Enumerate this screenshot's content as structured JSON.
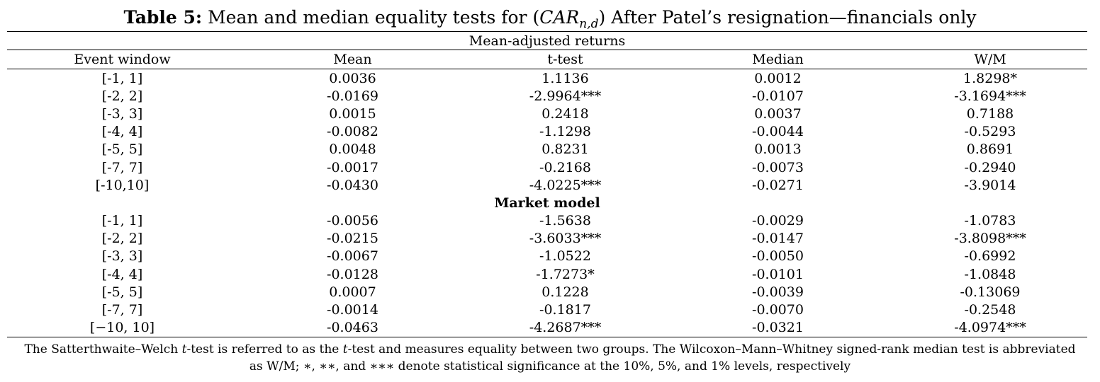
{
  "title": {
    "label": "Table 5:",
    "text_before": "Mean and median equality tests for",
    "math_open": "(",
    "math_var": "CAR",
    "math_sub": "n,d",
    "math_close": ")",
    "text_after": "After Patel’s resignation—financials only"
  },
  "table": {
    "panel_heading": "Mean-adjusted returns",
    "columns": [
      "Event window",
      "Mean",
      "t-test",
      "Median",
      "W/M"
    ],
    "section_heading": "Market model",
    "mean_adjusted_rows": [
      [
        "[-1, 1]",
        "0.0036",
        "1.1136",
        "0.0012",
        "1.8298*"
      ],
      [
        "[-2, 2]",
        "-0.0169",
        "-2.9964***",
        "-0.0107",
        "-3.1694***"
      ],
      [
        "[-3, 3]",
        "0.0015",
        "0.2418",
        "0.0037",
        "0.7188"
      ],
      [
        "[-4, 4]",
        "-0.0082",
        "-1.1298",
        "-0.0044",
        "-0.5293"
      ],
      [
        "[-5, 5]",
        "0.0048",
        "0.8231",
        "0.0013",
        "0.8691"
      ],
      [
        "[-7, 7]",
        "-0.0017",
        "-0.2168",
        "-0.0073",
        "-0.2940"
      ],
      [
        "[-10,10]",
        "-0.0430",
        "-4.0225***",
        "-0.0271",
        "-3.9014"
      ]
    ],
    "market_model_rows": [
      [
        "[-1, 1]",
        "-0.0056",
        "-1.5638",
        "-0.0029",
        "-1.0783"
      ],
      [
        "[-2, 2]",
        "-0.0215",
        "-3.6033***",
        "-0.0147",
        "-3.8098***"
      ],
      [
        "[-3, 3]",
        "-0.0067",
        "-1.0522",
        "-0.0050",
        "-0.6992"
      ],
      [
        "[-4, 4]",
        "-0.0128",
        "-1.7273*",
        "-0.0101",
        "-1.0848"
      ],
      [
        "[-5, 5]",
        "0.0007",
        "0.1228",
        "-0.0039",
        "-0.13069"
      ],
      [
        "[-7, 7]",
        "-0.0014",
        "-0.1817",
        "-0.0070",
        "-0.2548"
      ],
      [
        "[−10, 10]",
        "-0.0463",
        "-4.2687***",
        "-0.0321",
        "-4.0974***"
      ]
    ]
  },
  "note": {
    "part1": "The Satterthwaite–Welch ",
    "t1": "t",
    "part2": "-test is referred to as the ",
    "t2": "t",
    "part3": "-test and measures equality between two groups. The Wilcoxon–Mann–Whitney signed-rank median test is abbreviated as W/M; ",
    "sig": "∗, ∗∗, and ∗∗∗",
    "part4": " denote statistical significance at the 10%, 5%, and 1% levels, respectively"
  }
}
